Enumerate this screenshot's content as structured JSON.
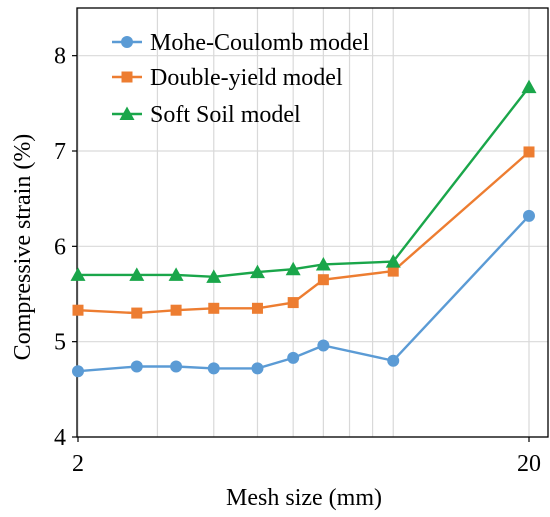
{
  "chart_data": {
    "type": "line",
    "title": "",
    "xlabel": "Mesh size (mm)",
    "ylabel": "Compressive strain (%)",
    "x_scale": "log",
    "xlim": [
      2,
      20
    ],
    "ylim": [
      4,
      8.5
    ],
    "x_ticks": [
      2,
      20
    ],
    "y_ticks": [
      4,
      5,
      6,
      7,
      8
    ],
    "grid": true,
    "legend_position": "top-left",
    "x": [
      2,
      2.7,
      3.3,
      4,
      5,
      6,
      7,
      10,
      20
    ],
    "series": [
      {
        "name": "Mohe-Coulomb model",
        "color": "#5b9bd5",
        "marker": "circle",
        "values": [
          4.69,
          4.74,
          4.74,
          4.72,
          4.72,
          4.83,
          4.96,
          4.8,
          6.32
        ]
      },
      {
        "name": "Double-yield model",
        "color": "#ed7d31",
        "marker": "square",
        "values": [
          5.33,
          5.3,
          5.33,
          5.35,
          5.35,
          5.41,
          5.65,
          5.74,
          6.99
        ]
      },
      {
        "name": "Soft Soil model",
        "color": "#1aa64a",
        "marker": "triangle",
        "values": [
          5.7,
          5.7,
          5.7,
          5.68,
          5.73,
          5.76,
          5.81,
          5.84,
          7.67
        ]
      }
    ]
  }
}
